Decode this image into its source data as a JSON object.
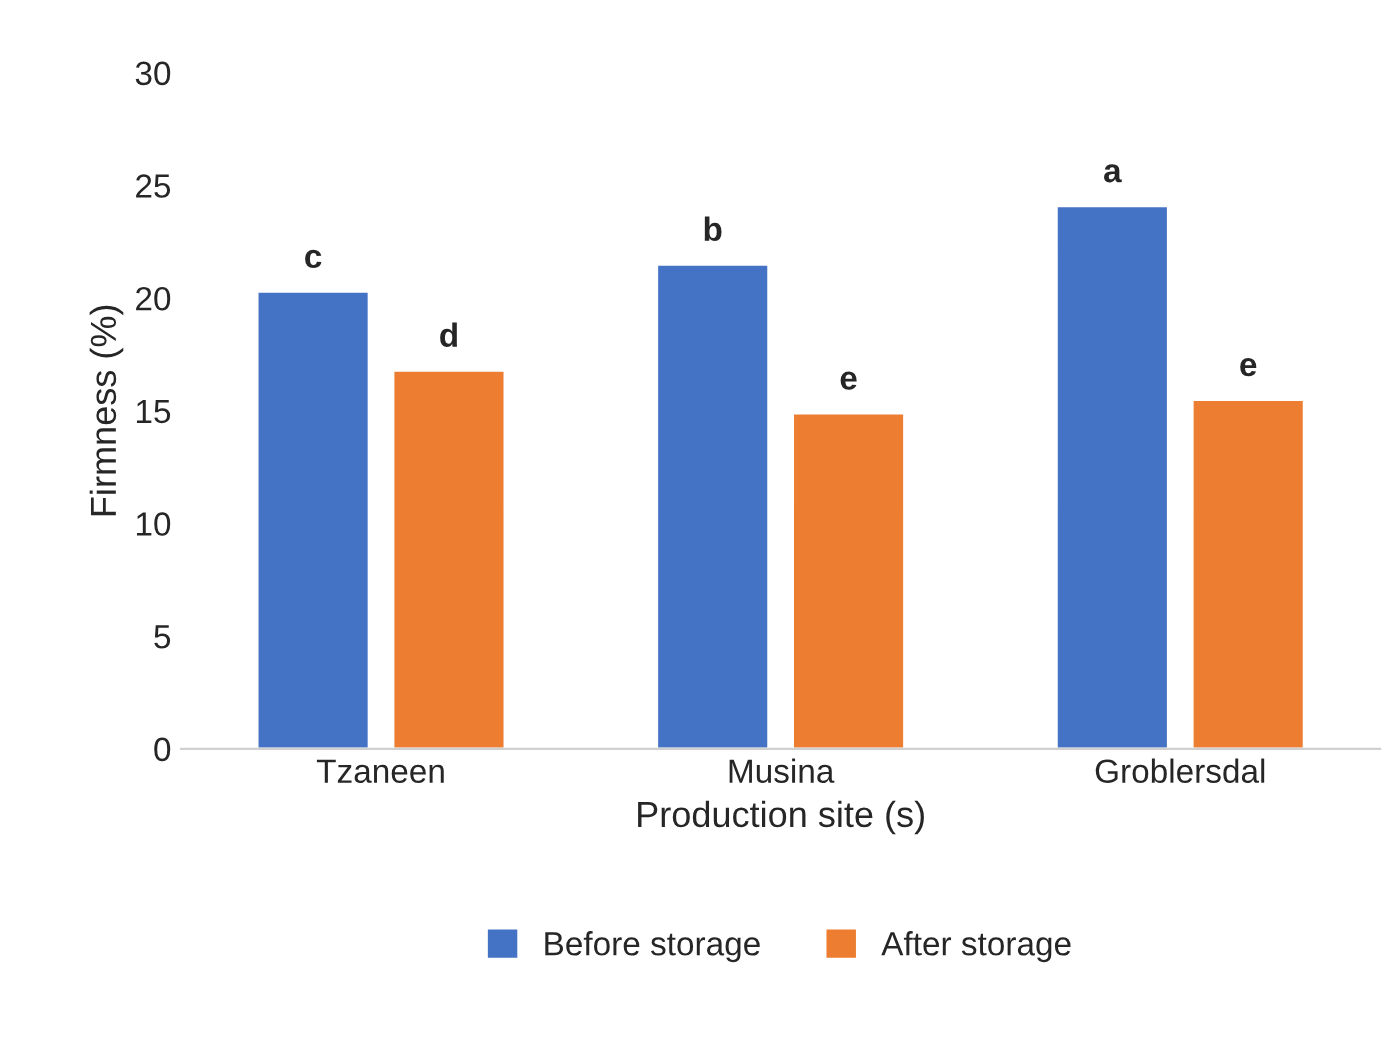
{
  "chart_data": {
    "type": "bar",
    "xlabel": "Production site (s)",
    "ylabel": "Firmness (%)",
    "categories": [
      "Tzaneen",
      "Musina",
      "Groblersdal"
    ],
    "series": [
      {
        "name": "Before storage",
        "color": "#4472c4",
        "values": [
          20.3,
          21.5,
          24.1
        ],
        "value_labels": [
          "c",
          "b",
          "a"
        ]
      },
      {
        "name": "After storage",
        "color": "#ed7d31",
        "values": [
          16.8,
          14.9,
          15.5
        ],
        "value_labels": [
          "d",
          "e",
          "e"
        ]
      }
    ],
    "ylim": [
      0,
      30
    ],
    "yticks": [
      0,
      5,
      10,
      15,
      20,
      25,
      30
    ],
    "grid": false,
    "legend": "bottom"
  }
}
